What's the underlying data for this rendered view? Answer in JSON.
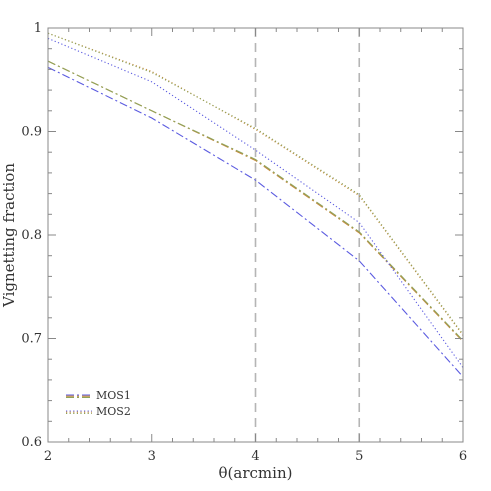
{
  "chart_data": {
    "type": "line",
    "xlabel": "θ(arcmin)",
    "ylabel": "Vignetting fraction",
    "xlim": [
      2,
      6
    ],
    "ylim": [
      0.6,
      1.0
    ],
    "xticks": [
      2,
      3,
      4,
      5,
      6
    ],
    "yticks": [
      0.6,
      0.7,
      0.8,
      0.9,
      1.0
    ],
    "xtick_labels": [
      "2",
      "3",
      "4",
      "5",
      "6"
    ],
    "ytick_labels": [
      "0.6",
      "0.7",
      "0.8",
      "0.9",
      "1"
    ],
    "vertical_lines": [
      4,
      5
    ],
    "legend_position": "bottom-left",
    "legend": [
      {
        "label": "MOS1",
        "style": "dash-dot"
      },
      {
        "label": "MOS2",
        "style": "dotted"
      }
    ],
    "series": [
      {
        "x": [
          2,
          3,
          4,
          5,
          6
        ],
        "y": [
          0.962,
          0.913,
          0.853,
          0.775,
          0.663
        ],
        "color": "#5b5be0",
        "style": "dash-dot",
        "group": "MOS1"
      },
      {
        "x": [
          2,
          3,
          4,
          5,
          6
        ],
        "y": [
          0.968,
          0.92,
          0.872,
          0.802,
          0.697
        ],
        "color": "#c8893e",
        "style": "dash-dot",
        "group": "MOS1"
      },
      {
        "x": [
          2,
          3,
          4,
          5,
          6
        ],
        "y": [
          0.968,
          0.92,
          0.873,
          0.803,
          0.698
        ],
        "color": "#8fa35a",
        "style": "dash-dot",
        "group": "MOS1"
      },
      {
        "x": [
          2,
          3,
          4,
          5,
          6
        ],
        "y": [
          0.99,
          0.948,
          0.882,
          0.812,
          0.672
        ],
        "color": "#5b5be0",
        "style": "dotted",
        "group": "MOS2"
      },
      {
        "x": [
          2,
          3,
          4,
          5,
          6
        ],
        "y": [
          0.995,
          0.958,
          0.902,
          0.838,
          0.703
        ],
        "color": "#c8893e",
        "style": "dotted",
        "group": "MOS2"
      },
      {
        "x": [
          2,
          3,
          4,
          5,
          6
        ],
        "y": [
          0.995,
          0.957,
          0.903,
          0.839,
          0.704
        ],
        "color": "#8fa35a",
        "style": "dotted",
        "group": "MOS2"
      }
    ]
  }
}
